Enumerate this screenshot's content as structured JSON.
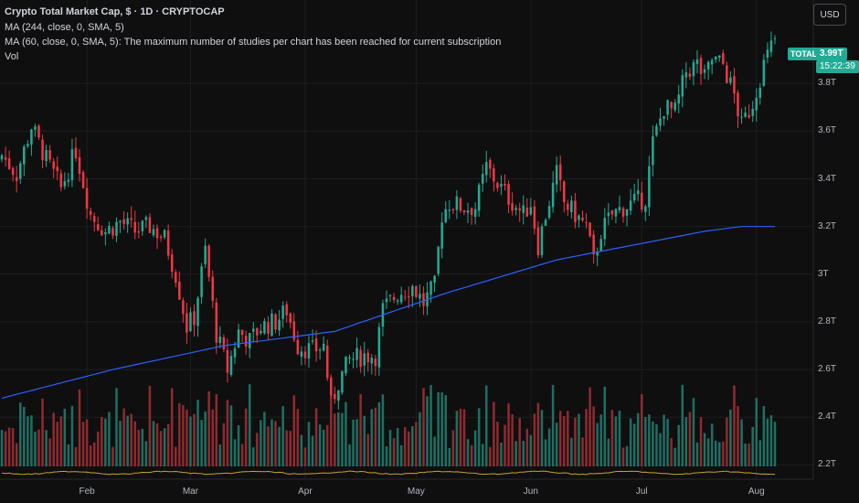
{
  "header": {
    "title": "Crypto Total Market Cap, $ · 1D · CRYPTOCAP",
    "ma1": "MA (244, close, 0, SMA, 5)",
    "ma2": "MA (60, close, 0, SMA, 5): The maximum number of studies per chart has been reached for current subscription",
    "vol": "Vol"
  },
  "currency_button": "USD",
  "last_price": {
    "symbol": "TOTAL",
    "value": "3.99T",
    "countdown": "15:22:39"
  },
  "colors": {
    "up": "#22ab94",
    "down": "#f23645",
    "up_volume": "#1e6f62",
    "down_volume": "#8f2a30",
    "ma_line": "#2962ff",
    "grid": "#1e1e1e",
    "background": "#0f0f0f"
  },
  "chart_data": {
    "type": "candlestick",
    "symbol": "CRYPTOCAP:TOTAL",
    "interval": "1D",
    "ylim": [
      2.14,
      4.15
    ],
    "y_unit": "T USD",
    "y_ticks": [
      "3.8T",
      "3.6T",
      "3.4T",
      "3.2T",
      "3T",
      "2.8T",
      "2.6T",
      "2.4T",
      "2.2T"
    ],
    "y_tick_values": [
      3.8,
      3.6,
      3.4,
      3.2,
      3.0,
      2.8,
      2.6,
      2.4,
      2.2
    ],
    "x_ticks": [
      "Feb",
      "Mar",
      "Apr",
      "May",
      "Jun",
      "Jul",
      "Aug"
    ],
    "x_tick_index": [
      23,
      51,
      82,
      112,
      143,
      173,
      204
    ],
    "grid": true,
    "close_anchors": [
      [
        0,
        3.5
      ],
      [
        4,
        3.42
      ],
      [
        8,
        3.62
      ],
      [
        12,
        3.48
      ],
      [
        16,
        3.36
      ],
      [
        20,
        3.52
      ],
      [
        24,
        3.25
      ],
      [
        28,
        3.18
      ],
      [
        32,
        3.22
      ],
      [
        36,
        3.18
      ],
      [
        40,
        3.2
      ],
      [
        44,
        3.15
      ],
      [
        47,
        3.0
      ],
      [
        50,
        2.78
      ],
      [
        52,
        2.82
      ],
      [
        55,
        3.1
      ],
      [
        58,
        2.75
      ],
      [
        61,
        2.6
      ],
      [
        64,
        2.76
      ],
      [
        67,
        2.72
      ],
      [
        70,
        2.78
      ],
      [
        74,
        2.8
      ],
      [
        77,
        2.85
      ],
      [
        80,
        2.7
      ],
      [
        84,
        2.68
      ],
      [
        87,
        2.7
      ],
      [
        89,
        2.45
      ],
      [
        91,
        2.55
      ],
      [
        94,
        2.64
      ],
      [
        98,
        2.66
      ],
      [
        101,
        2.66
      ],
      [
        103,
        2.85
      ],
      [
        107,
        2.92
      ],
      [
        111,
        2.95
      ],
      [
        114,
        2.88
      ],
      [
        117,
        2.95
      ],
      [
        119,
        3.25
      ],
      [
        121,
        3.3
      ],
      [
        125,
        3.28
      ],
      [
        128,
        3.28
      ],
      [
        131,
        3.45
      ],
      [
        134,
        3.38
      ],
      [
        137,
        3.32
      ],
      [
        141,
        3.25
      ],
      [
        143,
        3.3
      ],
      [
        145,
        3.12
      ],
      [
        147,
        3.25
      ],
      [
        150,
        3.42
      ],
      [
        152,
        3.3
      ],
      [
        155,
        3.25
      ],
      [
        158,
        3.2
      ],
      [
        160,
        3.05
      ],
      [
        162,
        3.18
      ],
      [
        165,
        3.25
      ],
      [
        168,
        3.28
      ],
      [
        171,
        3.3
      ],
      [
        174,
        3.32
      ],
      [
        176,
        3.55
      ],
      [
        179,
        3.7
      ],
      [
        182,
        3.68
      ],
      [
        185,
        3.85
      ],
      [
        188,
        3.88
      ],
      [
        190,
        3.82
      ],
      [
        192,
        3.9
      ],
      [
        195,
        3.88
      ],
      [
        198,
        3.75
      ],
      [
        200,
        3.62
      ],
      [
        203,
        3.72
      ],
      [
        206,
        3.88
      ],
      [
        209,
        3.99
      ]
    ],
    "ma_anchors": [
      [
        0,
        2.48
      ],
      [
        30,
        2.6
      ],
      [
        60,
        2.7
      ],
      [
        90,
        2.76
      ],
      [
        120,
        2.92
      ],
      [
        150,
        3.06
      ],
      [
        170,
        3.12
      ],
      [
        190,
        3.18
      ],
      [
        200,
        3.2
      ],
      [
        209,
        3.2
      ]
    ],
    "volume_note": "relative daily volume bars at bottom, colored by candle direction",
    "last_value": 3.99
  }
}
